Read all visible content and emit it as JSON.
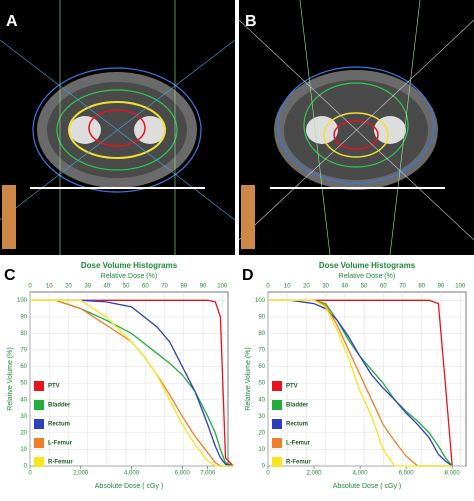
{
  "images": [
    {
      "label": "A"
    },
    {
      "label": "B"
    }
  ],
  "chart_data": [
    {
      "type": "line",
      "panel_label": "C",
      "title": "Dose Volume Histograms",
      "x2_label": "Relative Dose (%)",
      "xlabel": "Absolute Dose ( cGy )",
      "ylabel": "Relative Volume (%)",
      "x": [
        0,
        1000,
        2000,
        3000,
        4000,
        4500,
        5000,
        5500,
        6000,
        6500,
        7000,
        7300,
        7500,
        7700,
        8000
      ],
      "xlim": [
        0,
        7800
      ],
      "xticks": [
        0,
        {
          "value": 2000,
          "label": "2,000"
        },
        {
          "value": 4000,
          "label": "4,000"
        },
        {
          "value": 6000,
          "label": "6,000"
        },
        {
          "value": 7000,
          "label": "7,000"
        }
      ],
      "x2lim": [
        0,
        103
      ],
      "x2ticks": [
        0,
        10,
        20,
        30,
        40,
        50,
        60,
        70,
        80,
        90,
        100
      ],
      "ylim": [
        0,
        105
      ],
      "yticks": [
        0,
        10,
        20,
        30,
        40,
        50,
        60,
        70,
        80,
        90,
        100
      ],
      "grid": true,
      "series": [
        {
          "name": "PTV",
          "color": "#e8141b",
          "values": [
            100,
            100,
            100,
            100,
            100,
            100,
            100,
            100,
            100,
            100,
            100,
            99,
            90,
            5,
            0
          ]
        },
        {
          "name": "Bladder",
          "color": "#1fae3c",
          "values": [
            100,
            100,
            95,
            88,
            80,
            74,
            68,
            62,
            55,
            45,
            30,
            20,
            10,
            2,
            0
          ]
        },
        {
          "name": "Rectum",
          "color": "#2b3fbf",
          "values": [
            100,
            100,
            100,
            99,
            96,
            90,
            84,
            75,
            60,
            45,
            25,
            12,
            5,
            1,
            0
          ]
        },
        {
          "name": "L-Femur",
          "color": "#f07e26",
          "values": [
            100,
            100,
            95,
            85,
            75,
            66,
            55,
            43,
            30,
            18,
            8,
            2,
            0,
            0,
            0
          ]
        },
        {
          "name": "R-Femur",
          "color": "#f5e61e",
          "values": [
            100,
            100,
            100,
            90,
            75,
            66,
            55,
            40,
            25,
            13,
            3,
            0,
            0,
            0,
            0
          ]
        }
      ]
    },
    {
      "type": "line",
      "panel_label": "D",
      "title": "Dose Volume Histograms",
      "x2_label": "Relative Dose (%)",
      "xlabel": "Absolute Dose ( cGy )",
      "ylabel": "Relative Volume (%)",
      "x": [
        0,
        1000,
        2000,
        2500,
        3000,
        3500,
        4000,
        4500,
        5000,
        5500,
        6000,
        6500,
        7000,
        7400,
        7700,
        8000
      ],
      "xlim": [
        0,
        8600
      ],
      "xticks": [
        0,
        {
          "value": 2000,
          "label": "2,000"
        },
        {
          "value": 4000,
          "label": "4,000"
        },
        {
          "value": 6000,
          "label": "6,000"
        },
        {
          "value": 8000,
          "label": "8,000"
        }
      ],
      "x2lim": [
        0,
        103
      ],
      "x2ticks": [
        0,
        10,
        20,
        30,
        40,
        50,
        60,
        70,
        80,
        90,
        100
      ],
      "ylim": [
        0,
        105
      ],
      "yticks": [
        0,
        10,
        20,
        30,
        40,
        50,
        60,
        70,
        80,
        90,
        100
      ],
      "grid": true,
      "series": [
        {
          "name": "PTV",
          "color": "#e8141b",
          "values": [
            100,
            100,
            100,
            100,
            100,
            100,
            100,
            100,
            100,
            100,
            100,
            100,
            100,
            98,
            50,
            0
          ]
        },
        {
          "name": "Bladder",
          "color": "#1fae3c",
          "values": [
            100,
            100,
            100,
            98,
            88,
            76,
            66,
            58,
            50,
            40,
            33,
            27,
            20,
            12,
            5,
            0
          ]
        },
        {
          "name": "Rectum",
          "color": "#2b3fbf",
          "values": [
            100,
            100,
            98,
            95,
            88,
            78,
            66,
            55,
            47,
            40,
            32,
            25,
            17,
            7,
            3,
            0
          ]
        },
        {
          "name": "L-Femur",
          "color": "#f07e26",
          "values": [
            100,
            100,
            100,
            97,
            85,
            70,
            55,
            40,
            25,
            15,
            6,
            0,
            0,
            0,
            0,
            0
          ]
        },
        {
          "name": "R-Femur",
          "color": "#f5e61e",
          "values": [
            100,
            100,
            100,
            96,
            82,
            65,
            45,
            30,
            10,
            0,
            0,
            0,
            0,
            0,
            0,
            0
          ]
        }
      ]
    }
  ]
}
